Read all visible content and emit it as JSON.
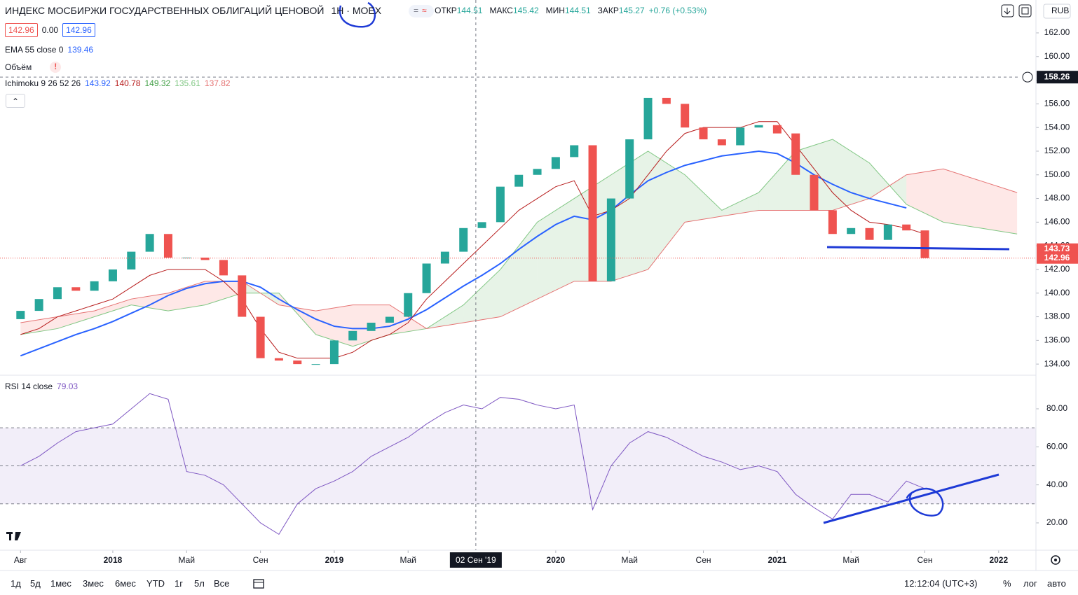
{
  "header": {
    "title": "ИНДЕКС МОСБИРЖИ ГОСУДАРСТВЕННЫХ ОБЛИГАЦИЙ ЦЕНОВОЙ",
    "interval": "1H · MOEX",
    "ohlc": [
      {
        "label": "ОТКР",
        "value": "144.51"
      },
      {
        "label": "МАКС",
        "value": "145.42"
      },
      {
        "label": "МИН",
        "value": "144.51"
      },
      {
        "label": "ЗАКР",
        "value": "145.27"
      }
    ],
    "change": "+0.76 (+0.53%)",
    "chips": [
      "142.96",
      "0.00",
      "142.96"
    ],
    "volume_label": "Объём",
    "currency": "RUB"
  },
  "chart_data": [
    {
      "type": "candlestick",
      "x": [
        0,
        1,
        2,
        3,
        4,
        5,
        6,
        7,
        8,
        9,
        10,
        11,
        12,
        13,
        14,
        15,
        16,
        17,
        18,
        19,
        20,
        21,
        22,
        23,
        24,
        25,
        26,
        27,
        28,
        29,
        30,
        31,
        32,
        33,
        34,
        35,
        36,
        37,
        38,
        39,
        40,
        41,
        42,
        43,
        44,
        45,
        46,
        47,
        48,
        49
      ],
      "open": [
        137.8,
        138.5,
        139.5,
        140.5,
        140.2,
        141,
        142,
        143.5,
        145,
        143,
        143,
        142.8,
        141.5,
        138,
        134.5,
        134.3,
        134,
        134,
        136,
        136.8,
        137.5,
        138,
        140,
        142.5,
        143.5,
        145.5,
        146,
        149,
        150,
        150.5,
        151.5,
        152.5,
        141,
        148,
        153,
        156.5,
        156,
        154,
        153,
        152.5,
        154,
        154.2,
        153.5,
        150,
        147,
        145,
        145.5,
        144.5,
        145.8,
        145.3
      ],
      "close": [
        138.5,
        139.5,
        140.5,
        140.2,
        141,
        142,
        143.5,
        145,
        143,
        143,
        142.8,
        141.5,
        138,
        134.5,
        134.3,
        134,
        134,
        136,
        136.8,
        137.5,
        138,
        140,
        142.5,
        143.5,
        145.5,
        146,
        149,
        150,
        150.5,
        151.5,
        152.5,
        141,
        148,
        153,
        156.5,
        156,
        154,
        153,
        152.5,
        154,
        154.2,
        153.5,
        150,
        147,
        145,
        145.5,
        144.5,
        145.8,
        145.3,
        142.96
      ],
      "up_color": "#26a69a",
      "down_color": "#ef5350",
      "series": [
        {
          "name": "EMA 55 close 0",
          "color": "#2962ff",
          "width": 2,
          "legend_value": "139.46",
          "values": [
            134.7,
            135.3,
            135.9,
            136.5,
            137,
            137.6,
            138.3,
            139,
            139.8,
            140.4,
            140.8,
            141,
            141,
            140.5,
            139.5,
            138.6,
            137.8,
            137.2,
            137,
            137,
            137.2,
            137.8,
            138.6,
            139.6,
            140.6,
            141.5,
            142.5,
            143.7,
            144.8,
            145.8,
            146.5,
            146.2,
            147,
            148.3,
            149.5,
            150.2,
            150.8,
            151.2,
            151.6,
            151.8,
            152,
            151.8,
            151,
            150,
            149.2,
            148.5,
            148,
            147.6,
            147.2,
            null
          ]
        },
        {
          "name": "Ichimoku 9 26 52 26",
          "color": "#b71c1c",
          "width": 1,
          "legend_values": [
            "143.92",
            "140.78",
            "149.32",
            "135.61",
            "137.82"
          ],
          "legend_colors": [
            "#2962ff",
            "#b71c1c",
            "#43a047",
            "#81c784",
            "#e57373"
          ],
          "values": [
            136.5,
            137,
            138,
            138.5,
            139,
            139.5,
            140.5,
            141.5,
            142,
            142,
            142,
            141,
            139.5,
            137,
            135,
            134.5,
            134.5,
            134.5,
            135,
            136,
            136.5,
            137.5,
            139.5,
            141,
            142.5,
            144,
            145.5,
            147,
            148,
            149,
            149.5,
            146.5,
            147,
            148,
            150,
            152,
            153.5,
            154,
            154,
            154,
            154.5,
            154.5,
            152.5,
            150.5,
            148.5,
            147,
            146,
            145.8,
            145.5,
            145
          ]
        }
      ],
      "cloud": {
        "x": [
          0,
          2,
          4,
          6,
          8,
          10,
          12,
          14,
          16,
          18,
          20,
          22,
          24,
          26,
          28,
          30,
          32,
          34,
          36,
          38,
          40,
          42,
          44,
          46,
          48,
          50,
          52,
          54
        ],
        "span_a": [
          136.5,
          137,
          138,
          139,
          138.5,
          139,
          140,
          140,
          136.5,
          135.5,
          136.5,
          137,
          139,
          142,
          146,
          148,
          150,
          152,
          150,
          147,
          148.5,
          152,
          153,
          151,
          147.5,
          146,
          145.5,
          145
        ],
        "span_b": [
          137.5,
          138,
          138.5,
          139.5,
          140,
          141,
          141,
          139,
          138.5,
          139,
          139,
          137,
          137.5,
          138,
          139.5,
          141,
          141,
          142,
          146,
          146.5,
          147,
          147,
          147,
          148,
          150,
          150.5,
          149.5,
          148.5
        ],
        "up_color": "rgba(67,160,71,0.13)",
        "down_color": "rgba(244,67,54,0.12)",
        "line_a": "#81c784",
        "line_b": "#e57373"
      },
      "xlim": [
        -1.113,
        55.02
      ],
      "ylim": [
        133.12,
        164.78
      ],
      "xticks": [
        {
          "value": 0,
          "label": "Авг"
        },
        {
          "value": 5,
          "label": "2018"
        },
        {
          "value": 9,
          "label": "Май"
        },
        {
          "value": 13,
          "label": "Сен"
        },
        {
          "value": 17,
          "label": "2019"
        },
        {
          "value": 21,
          "label": "Май"
        },
        {
          "value": 29,
          "label": "2020"
        },
        {
          "value": 33,
          "label": "Май"
        },
        {
          "value": 37,
          "label": "Сен"
        },
        {
          "value": 41,
          "label": "2021"
        },
        {
          "value": 45,
          "label": "Май"
        },
        {
          "value": 49,
          "label": "Сен"
        },
        {
          "value": 53,
          "label": "2022"
        }
      ],
      "yticks": [
        {
          "value": 134,
          "label": "134.00"
        },
        {
          "value": 136,
          "label": "136.00"
        },
        {
          "value": 138,
          "label": "138.00"
        },
        {
          "value": 140,
          "label": "140.00"
        },
        {
          "value": 142,
          "label": "142.00"
        },
        {
          "value": 144,
          "label": "144.00"
        },
        {
          "value": 146,
          "label": "146.00"
        },
        {
          "value": 148,
          "label": "148.00"
        },
        {
          "value": 150,
          "label": "150.00"
        },
        {
          "value": 152,
          "label": "152.00"
        },
        {
          "value": 154,
          "label": "154.00"
        },
        {
          "value": 156,
          "label": "156.00"
        },
        {
          "value": 158,
          "label": "158.00"
        },
        {
          "value": 160,
          "label": "160.00"
        },
        {
          "value": 162,
          "label": "162.00"
        }
      ],
      "price_tags": [
        {
          "value": 143.73,
          "label": "143.73",
          "color": "#ef5350"
        },
        {
          "value": 142.96,
          "label": "142.96",
          "color": "#ef5350",
          "line": true
        }
      ],
      "crosshair": {
        "x": 24.67,
        "x_label": "02 Сен '19",
        "y": {
          "value": 158.26,
          "label": "158.26"
        }
      }
    },
    {
      "type": "line",
      "title": "RSI 14 close",
      "legend_value": "79.03",
      "color": "#7e57c2",
      "x": [
        0,
        1,
        2,
        3,
        4,
        5,
        6,
        7,
        8,
        9,
        10,
        11,
        12,
        13,
        14,
        15,
        16,
        17,
        18,
        19,
        20,
        21,
        22,
        23,
        24,
        25,
        26,
        27,
        28,
        29,
        30,
        31,
        32,
        33,
        34,
        35,
        36,
        37,
        38,
        39,
        40,
        41,
        42,
        43,
        44,
        45,
        46,
        47,
        48,
        49
      ],
      "values": [
        50,
        55,
        62,
        68,
        70,
        72,
        80,
        88,
        85,
        47,
        45,
        40,
        30,
        20,
        14,
        30,
        38,
        42,
        47,
        55,
        60,
        65,
        72,
        78,
        82,
        80,
        86,
        85,
        82,
        80,
        82,
        27,
        50,
        62,
        68,
        65,
        60,
        55,
        52,
        48,
        50,
        47,
        35,
        28,
        22,
        35,
        35,
        31,
        42,
        38
      ],
      "bands": {
        "upper": 70,
        "middle": 50,
        "lower": 30
      },
      "xlim": [
        -1.113,
        55.02
      ],
      "ylim": [
        6,
        97.3
      ],
      "yticks": [
        {
          "value": 20,
          "label": "20.00"
        },
        {
          "value": 40,
          "label": "40.00"
        },
        {
          "value": 60,
          "label": "60.00"
        },
        {
          "value": 80,
          "label": "80.00"
        }
      ]
    }
  ],
  "toolbar": {
    "ranges": [
      "1д",
      "5д",
      "1мес",
      "3мес",
      "6мес",
      "YTD",
      "1г",
      "5л",
      "Все"
    ],
    "clock": "12:12:04 (UTC+3)",
    "options": [
      "%",
      "лог",
      "авто"
    ]
  }
}
